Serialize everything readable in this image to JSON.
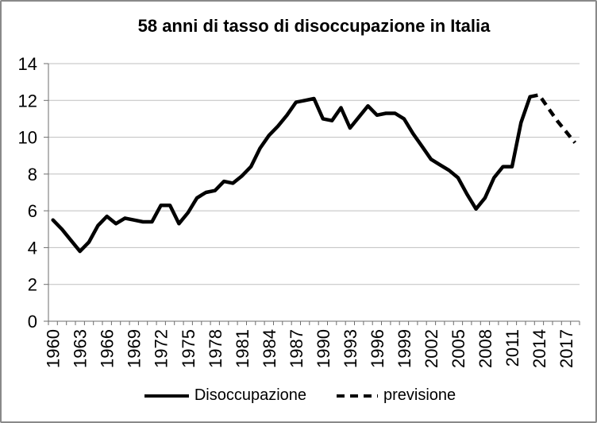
{
  "title": "58 anni di tasso di disoccupazione in Italia",
  "colors": {
    "line": "#000000",
    "gridline": "#BFBFBF",
    "axis": "#6E6E6E",
    "text": "#000000",
    "background": "#FFFFFF",
    "border": "#898989"
  },
  "legend": {
    "items": [
      {
        "label": "Disoccupazione",
        "style": "solid"
      },
      {
        "label": "previsione",
        "style": "dashed"
      }
    ]
  },
  "chart_data": {
    "type": "line",
    "title": "58 anni di tasso di disoccupazione in Italia",
    "xlabel": "",
    "ylabel": "",
    "ylim": [
      0,
      14
    ],
    "ytick_step": 2,
    "grid": "horizontal",
    "legend_position": "bottom",
    "x": [
      1960,
      1961,
      1962,
      1963,
      1964,
      1965,
      1966,
      1967,
      1968,
      1969,
      1970,
      1971,
      1972,
      1973,
      1974,
      1975,
      1976,
      1977,
      1978,
      1979,
      1980,
      1981,
      1982,
      1983,
      1984,
      1985,
      1986,
      1987,
      1988,
      1989,
      1990,
      1991,
      1992,
      1993,
      1994,
      1995,
      1996,
      1997,
      1998,
      1999,
      2000,
      2001,
      2002,
      2003,
      2004,
      2005,
      2006,
      2007,
      2008,
      2009,
      2010,
      2011,
      2012,
      2013,
      2014,
      2015,
      2016,
      2017,
      2018
    ],
    "x_tick_labels": [
      1960,
      1963,
      1966,
      1969,
      1972,
      1975,
      1978,
      1981,
      1984,
      1987,
      1990,
      1993,
      1996,
      1999,
      2002,
      2005,
      2008,
      2011,
      2014,
      2017
    ],
    "series": [
      {
        "name": "Disoccupazione",
        "style": "solid",
        "color": "#000000",
        "x_start": 1960,
        "values": [
          5.5,
          5.0,
          4.4,
          3.8,
          4.3,
          5.2,
          5.7,
          5.3,
          5.6,
          5.5,
          5.4,
          5.4,
          6.3,
          6.3,
          5.3,
          5.9,
          6.7,
          7.0,
          7.1,
          7.6,
          7.5,
          7.9,
          8.4,
          9.4,
          10.1,
          10.6,
          11.2,
          11.9,
          12.0,
          12.1,
          11.0,
          10.9,
          11.6,
          10.5,
          11.1,
          11.7,
          11.2,
          11.3,
          11.3,
          11.0,
          10.2,
          9.5,
          8.8,
          8.5,
          8.2,
          7.8,
          6.9,
          6.1,
          6.7,
          7.8,
          8.4,
          8.4,
          10.8,
          12.2
        ]
      },
      {
        "name": "previsione",
        "style": "dashed",
        "color": "#000000",
        "x_start": 2013,
        "values": [
          12.2,
          12.3,
          11.6,
          10.9,
          10.3,
          9.7
        ]
      }
    ]
  }
}
